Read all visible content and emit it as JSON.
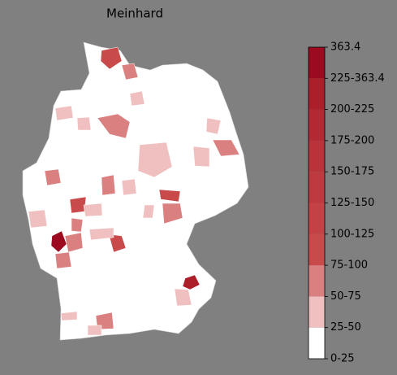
{
  "title": "Meinhard",
  "colorbar": {
    "labels": [
      "0-25",
      "25-50",
      "50-75",
      "75-100",
      "100-125",
      "125-150",
      "150-175",
      "175-200",
      "200-225",
      "225-363.4",
      "363.4"
    ],
    "colors": [
      "#ffffff",
      "#f0c0c0",
      "#db8080",
      "#c84a4a",
      "#c44246",
      "#bf3a40",
      "#ba323a",
      "#b42833",
      "#ad1e2b",
      "#9b0a1e"
    ]
  }
}
